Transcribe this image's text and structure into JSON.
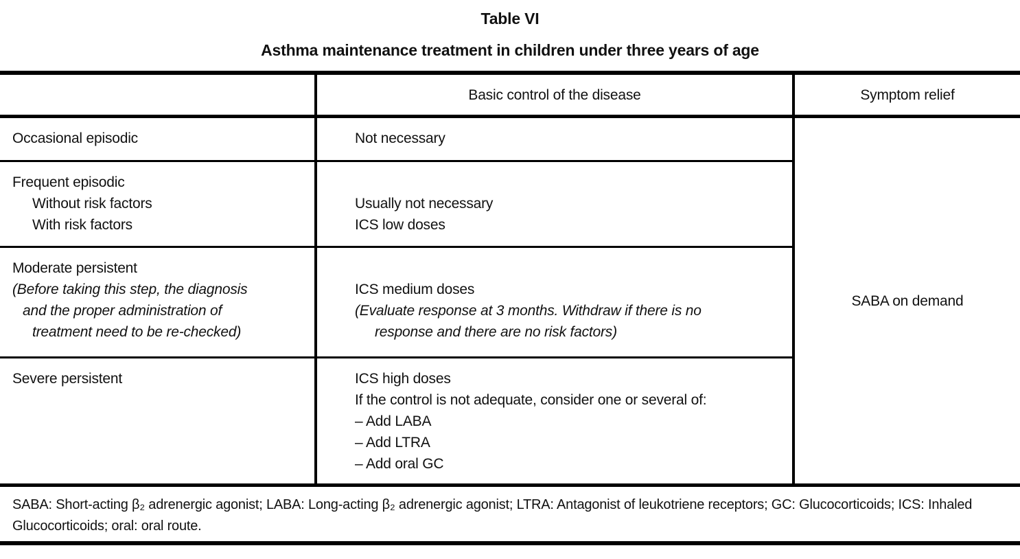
{
  "title": "Table VI",
  "subtitle": "Asthma maintenance treatment in children under three years of age",
  "colors": {
    "text": "#111111",
    "rule": "#000000",
    "background": "#ffffff"
  },
  "table": {
    "header": {
      "severity": "",
      "basic_control": "Basic control of the disease",
      "symptom_relief": "Symptom relief"
    },
    "rows": [
      {
        "severity": [
          "Occasional episodic"
        ],
        "treatment": [
          "Not necessary"
        ]
      },
      {
        "severity": [
          "Frequent episodic",
          "Without risk factors",
          "With risk factors"
        ],
        "treatment": [
          "",
          "Usually not necessary",
          "ICS low doses"
        ]
      },
      {
        "severity": [
          "Moderate persistent",
          "(Before taking this step, the diagnosis",
          "and the proper administration of",
          "treatment need to be re-checked)"
        ],
        "treatment": [
          "",
          "ICS medium doses",
          "(Evaluate response at 3 months. Withdraw if there is no",
          "response and there are no risk factors)"
        ]
      },
      {
        "severity": [
          "Severe persistent"
        ],
        "treatment": [
          "ICS high doses",
          "If the control is not adequate, consider one or several of:",
          "– Add LABA",
          "– Add LTRA",
          "– Add oral GC"
        ]
      }
    ],
    "symptom_relief_value": "SABA on demand"
  },
  "footnote": "SABA: Short-acting β₂ adrenergic agonist; LABA: Long-acting β₂ adrenergic agonist; LTRA: Antagonist of leukotriene receptors; GC: Glucocorticoids; ICS: Inhaled Glucocorticoids; oral: oral route."
}
